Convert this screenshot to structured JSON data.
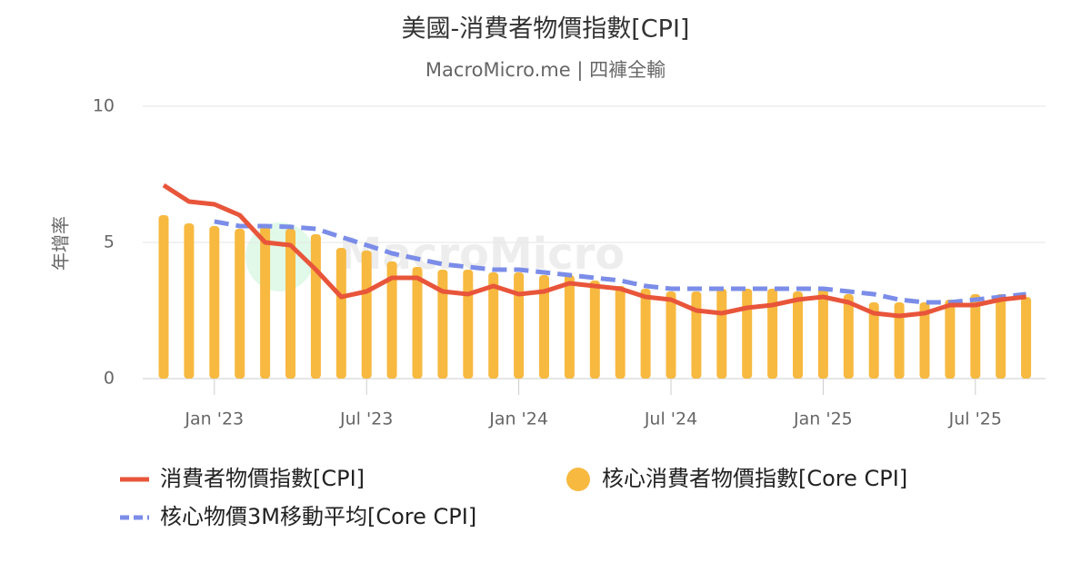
{
  "chart_data": {
    "type": "bar-line",
    "title": "美國-消費者物價指數[CPI]",
    "subtitle": "MacroMicro.me | 四褲全輸",
    "watermark": "MacroMicro",
    "ylabel": "年增率",
    "x": [
      "2022-11",
      "2022-12",
      "2023-01",
      "2023-02",
      "2023-03",
      "2023-04",
      "2023-05",
      "2023-06",
      "2023-07",
      "2023-08",
      "2023-09",
      "2023-10",
      "2023-11",
      "2023-12",
      "2024-01",
      "2024-02",
      "2024-03",
      "2024-04",
      "2024-05",
      "2024-06",
      "2024-07",
      "2024-08",
      "2024-09",
      "2024-10",
      "2024-11",
      "2024-12",
      "2025-01",
      "2025-02",
      "2025-03",
      "2025-04",
      "2025-05",
      "2025-06",
      "2025-07",
      "2025-08",
      "2025-09"
    ],
    "series": [
      {
        "name": "消費者物價指數[CPI]",
        "type": "line",
        "color": "#e8553a",
        "values": [
          7.1,
          6.5,
          6.4,
          6.0,
          5.0,
          4.9,
          4.0,
          3.0,
          3.2,
          3.7,
          3.7,
          3.2,
          3.1,
          3.4,
          3.1,
          3.2,
          3.5,
          3.4,
          3.3,
          3.0,
          2.9,
          2.5,
          2.4,
          2.6,
          2.7,
          2.9,
          3.0,
          2.8,
          2.4,
          2.3,
          2.4,
          2.7,
          2.7,
          2.9,
          3.0
        ]
      },
      {
        "name": "核心消費者物價指數[Core CPI]",
        "type": "bar",
        "color": "#f7b940",
        "values": [
          6.0,
          5.7,
          5.6,
          5.5,
          5.6,
          5.5,
          5.3,
          4.8,
          4.7,
          4.3,
          4.1,
          4.0,
          4.0,
          3.9,
          3.9,
          3.8,
          3.8,
          3.6,
          3.4,
          3.3,
          3.2,
          3.2,
          3.3,
          3.3,
          3.3,
          3.2,
          3.3,
          3.1,
          2.8,
          2.8,
          2.8,
          2.9,
          3.1,
          3.1,
          3.0
        ]
      },
      {
        "name": "核心物價3M移動平均[Core CPI]",
        "type": "dashed-line",
        "color": "#7b8de8",
        "values": [
          null,
          null,
          5.77,
          5.6,
          5.6,
          5.57,
          5.5,
          5.2,
          4.9,
          4.6,
          4.4,
          4.2,
          4.1,
          4.0,
          4.0,
          3.9,
          3.8,
          3.7,
          3.6,
          3.4,
          3.3,
          3.3,
          3.3,
          3.3,
          3.3,
          3.3,
          3.3,
          3.2,
          3.1,
          2.9,
          2.8,
          2.8,
          2.9,
          3.0,
          3.1
        ]
      }
    ],
    "xticks": [
      {
        "value": "2023-01",
        "label": "Jan '23"
      },
      {
        "value": "2023-07",
        "label": "Jul '23"
      },
      {
        "value": "2024-01",
        "label": "Jan '24"
      },
      {
        "value": "2024-07",
        "label": "Jul '24"
      },
      {
        "value": "2025-01",
        "label": "Jan '25"
      },
      {
        "value": "2025-07",
        "label": "Jul '25"
      }
    ],
    "ylim": [
      0,
      10
    ],
    "yticks": [
      0,
      5,
      10
    ],
    "grid": true
  }
}
